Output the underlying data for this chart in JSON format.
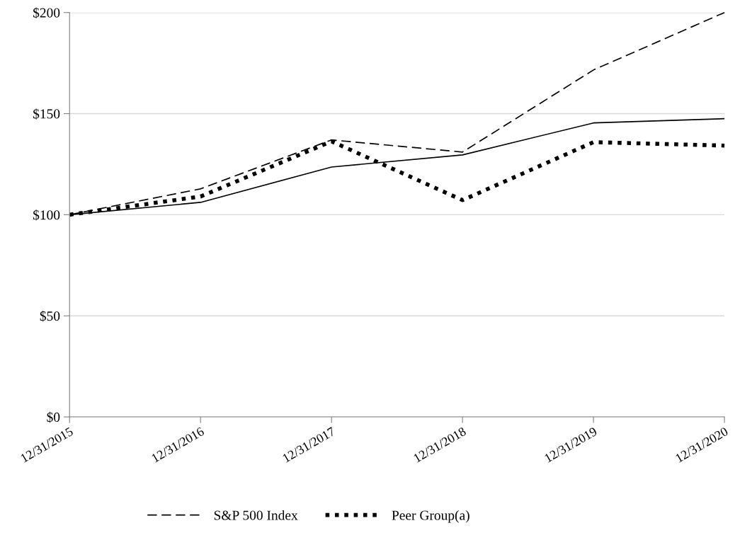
{
  "chart_data": {
    "type": "line",
    "categories": [
      "12/31/2015",
      "12/31/2016",
      "12/31/2017",
      "12/31/2018",
      "12/31/2019",
      "12/31/2020"
    ],
    "series": [
      {
        "color": "#000000",
        "line_style": "solid",
        "values": [
          100,
          106.1,
          123.6,
          129.6,
          145.4,
          147.5
        ]
      },
      {
        "name": "S&P 500 Index",
        "color": "#000000",
        "line_style": "dashed",
        "values": [
          100,
          112.8,
          137,
          131,
          171.6,
          200
        ]
      },
      {
        "name": "Peer Group(a)",
        "color": "#000000",
        "line_style": "dotted",
        "values": [
          100,
          109,
          136.3,
          107.2,
          135.9,
          134.2
        ]
      }
    ],
    "ylim": [
      0,
      200
    ],
    "yticks": [
      {
        "value": 0,
        "label": "$0"
      },
      {
        "value": 50,
        "label": "$50"
      },
      {
        "value": 100,
        "label": "$100"
      },
      {
        "value": 150,
        "label": "$150"
      },
      {
        "value": 200,
        "label": "$200"
      }
    ],
    "grid": "y",
    "legend": "bottom",
    "marker": "none"
  }
}
